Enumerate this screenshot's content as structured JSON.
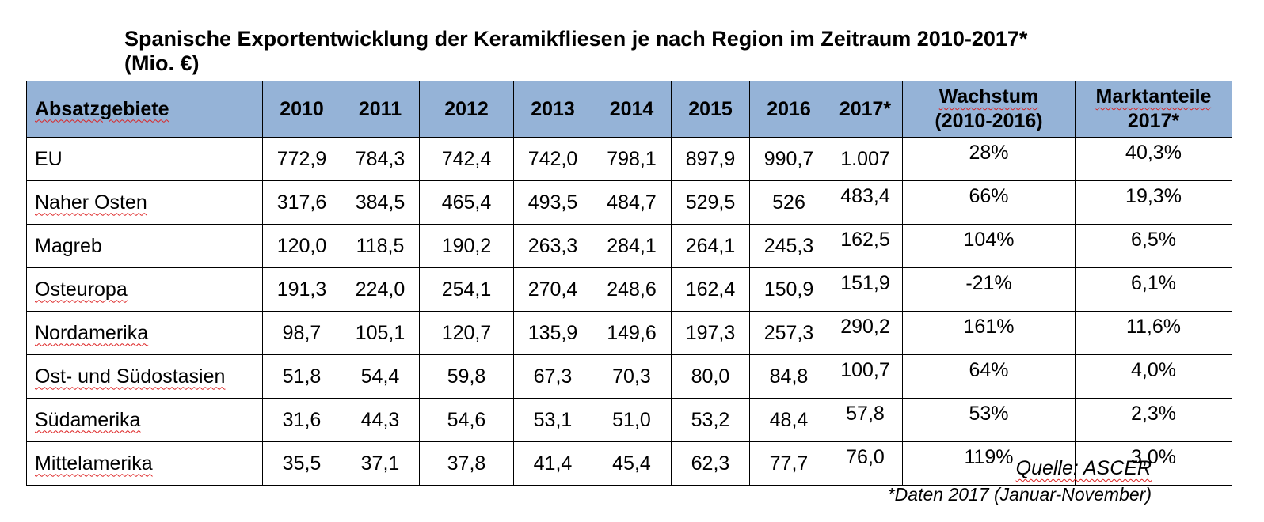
{
  "title": {
    "line1": "Spanische Exportentwicklung der Keramikfliesen je nach Region im Zeitraum 2010-2017*",
    "line2": "(Mio. €)"
  },
  "table": {
    "headers": {
      "region": "Absatzgebiete",
      "years": [
        "2010",
        "2011",
        "2012",
        "2013",
        "2014",
        "2015",
        "2016",
        "2017*"
      ],
      "growth_line1": "Wachstum",
      "growth_line2": "(2010-2016)",
      "share_line1": "Marktanteile",
      "share_line2": "2017*"
    },
    "rows": [
      {
        "region": "EU",
        "values": [
          "772,9",
          "784,3",
          "742,4",
          "742,0",
          "798,1",
          "897,9",
          "990,7",
          "1.007"
        ],
        "growth": "28%",
        "share": "40,3%"
      },
      {
        "region": "Naher Osten",
        "values": [
          "317,6",
          "384,5",
          "465,4",
          "493,5",
          "484,7",
          "529,5",
          "526",
          "483,4"
        ],
        "growth": "66%",
        "share": "19,3%"
      },
      {
        "region": "Magreb",
        "values": [
          "120,0",
          "118,5",
          "190,2",
          "263,3",
          "284,1",
          "264,1",
          "245,3",
          "162,5"
        ],
        "growth": "104%",
        "share": "6,5%"
      },
      {
        "region": "Osteuropa",
        "values": [
          "191,3",
          "224,0",
          "254,1",
          "270,4",
          "248,6",
          "162,4",
          "150,9",
          "151,9"
        ],
        "growth": "-21%",
        "share": "6,1%"
      },
      {
        "region": "Nordamerika",
        "values": [
          "98,7",
          "105,1",
          "120,7",
          "135,9",
          "149,6",
          "197,3",
          "257,3",
          "290,2"
        ],
        "growth": "161%",
        "share": "11,6%"
      },
      {
        "region": "Ost- und Südostasien",
        "values": [
          "51,8",
          "54,4",
          "59,8",
          "67,3",
          "70,3",
          "80,0",
          "84,8",
          "100,7"
        ],
        "growth": "64%",
        "share": "4,0%"
      },
      {
        "region": "Südamerika",
        "values": [
          "31,6",
          "44,3",
          "54,6",
          "53,1",
          "51,0",
          "53,2",
          "48,4",
          "57,8"
        ],
        "growth": "53%",
        "share": "2,3%"
      },
      {
        "region": "Mittelamerika",
        "values": [
          "35,5",
          "37,1",
          "37,8",
          "41,4",
          "45,4",
          "62,3",
          "77,7",
          "76,0"
        ],
        "growth": "119%",
        "share": "3,0%"
      }
    ]
  },
  "source": "Quelle: ASCER",
  "note": "*Daten 2017 (Januar-November)",
  "colors": {
    "header_bg": "#95b3d7",
    "spellcheck": "#d22"
  }
}
